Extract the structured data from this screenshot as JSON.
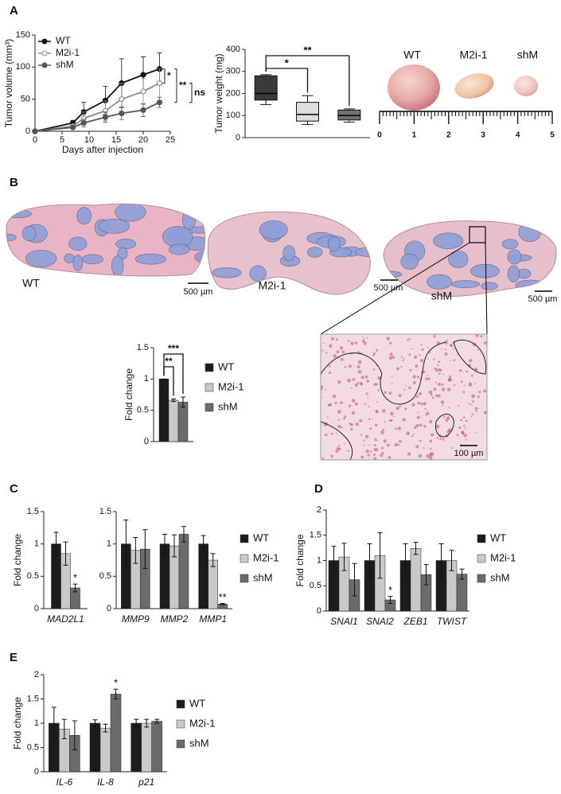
{
  "figure": {
    "panel_labels": [
      "A",
      "B",
      "C",
      "D",
      "E"
    ],
    "tumor_photo": {
      "labels": [
        "WT",
        "M2i-1",
        "shM"
      ],
      "ruler_ticks": [
        0,
        1,
        2,
        3,
        4,
        5
      ]
    },
    "histology": {
      "labels": [
        "WT",
        "M2i-1",
        "shM"
      ],
      "scale_bars": [
        "500 µm",
        "500 µm",
        "500 µm"
      ],
      "inset_scale_bar": "100 µm"
    }
  },
  "chart_data": [
    {
      "type": "line",
      "xlabel": "Days after injection",
      "ylabel": "Tumor volume (mm³)",
      "x": [
        0,
        7,
        9,
        13,
        16,
        20,
        23
      ],
      "xlim": [
        0,
        25
      ],
      "xticks": [
        0,
        5,
        10,
        15,
        20,
        25
      ],
      "ylim": [
        0,
        150
      ],
      "yticks": [
        0,
        50,
        100,
        150
      ],
      "series": [
        {
          "name": "WT",
          "color": "#111111",
          "marker": "filled",
          "values": [
            0,
            13,
            30,
            48,
            75,
            88,
            97
          ],
          "errors": [
            0,
            4,
            15,
            22,
            38,
            28,
            25
          ]
        },
        {
          "name": "M2i-1",
          "color": "#8a8a8a",
          "marker": "open",
          "values": [
            0,
            8,
            20,
            32,
            50,
            62,
            75
          ],
          "errors": [
            0,
            3,
            10,
            15,
            25,
            20,
            22
          ]
        },
        {
          "name": "shM",
          "color": "#555555",
          "marker": "filled",
          "values": [
            0,
            6,
            13,
            22,
            28,
            33,
            45
          ],
          "errors": [
            0,
            2,
            6,
            8,
            10,
            10,
            8
          ]
        }
      ],
      "annotations": [
        "*",
        "**",
        "ns"
      ]
    },
    {
      "type": "box",
      "ylabel": "Tumor weight (mg)",
      "categories": [
        null,
        null,
        null
      ],
      "ylim": [
        0,
        400
      ],
      "yticks": [
        0,
        100,
        200,
        300,
        400
      ],
      "boxes": [
        {
          "color": "#3a3a3a",
          "min": 150,
          "q1": 170,
          "median": 200,
          "q3": 280,
          "max": 285
        },
        {
          "color": "#dedede",
          "min": 60,
          "q1": 75,
          "median": 105,
          "q3": 160,
          "max": 190
        },
        {
          "color": "#707070",
          "min": 70,
          "q1": 80,
          "median": 100,
          "q3": 125,
          "max": 130
        }
      ],
      "annotations": [
        "*",
        "**"
      ]
    },
    {
      "type": "bar",
      "ylabel": "Fold change",
      "categories": [
        null
      ],
      "ylim": [
        0,
        1.5
      ],
      "yticks": [
        0,
        0.5,
        1,
        1.5
      ],
      "legend": true,
      "series": [
        {
          "name": "WT",
          "color": "#1c1c1c",
          "values": [
            1
          ],
          "errors": [
            0
          ]
        },
        {
          "name": "M2i-1",
          "color": "#c9c9c9",
          "values": [
            0.66
          ],
          "errors": [
            0.02
          ]
        },
        {
          "name": "shM",
          "color": "#6b6b6b",
          "values": [
            0.63
          ],
          "errors": [
            0.08
          ]
        }
      ],
      "annotations": [
        "**",
        "***"
      ]
    },
    {
      "type": "bar",
      "ylabel": "Fold change",
      "categories": [
        "MAD2L1"
      ],
      "ylim": [
        0,
        1.5
      ],
      "yticks": [
        0,
        0.5,
        1,
        1.5
      ],
      "legend": false,
      "series": [
        {
          "color": "#1c1c1c",
          "values": [
            1
          ],
          "errors": [
            0.18
          ]
        },
        {
          "color": "#c9c9c9",
          "values": [
            0.85
          ],
          "errors": [
            0.18
          ]
        },
        {
          "color": "#6b6b6b",
          "values": [
            0.32
          ],
          "errors": [
            0.06
          ]
        }
      ],
      "annotations": [
        "*"
      ]
    },
    {
      "type": "bar",
      "categories": [
        "MMP9",
        "MMP2",
        "MMP1"
      ],
      "ylim": [
        0,
        1.5
      ],
      "yticks": [
        0,
        0.5,
        1,
        1.5
      ],
      "legend": true,
      "series": [
        {
          "name": "WT",
          "color": "#1c1c1c",
          "values": [
            1,
            1,
            1
          ],
          "errors": [
            0.37,
            0.15,
            0.13
          ]
        },
        {
          "name": "M2i-1",
          "color": "#c9c9c9",
          "values": [
            0.9,
            0.97,
            0.75
          ],
          "errors": [
            0.2,
            0.17,
            0.1
          ]
        },
        {
          "name": "shM",
          "color": "#6b6b6b",
          "values": [
            0.92,
            1.15,
            0.07
          ],
          "errors": [
            0.3,
            0.12,
            0.01
          ]
        }
      ],
      "annotations": [
        "**"
      ]
    },
    {
      "type": "bar",
      "ylabel": "Fold change",
      "categories": [
        "SNAI1",
        "SNAI2",
        "ZEB1",
        "TWIST"
      ],
      "ylim": [
        0,
        2
      ],
      "yticks": [
        0,
        0.5,
        1,
        1.5,
        2
      ],
      "legend": true,
      "series": [
        {
          "name": "WT",
          "color": "#1c1c1c",
          "values": [
            1,
            1,
            1,
            1
          ],
          "errors": [
            0.28,
            0.33,
            0.33,
            0.33
          ]
        },
        {
          "name": "M2i-1",
          "color": "#c9c9c9",
          "values": [
            1.07,
            1.1,
            1.24,
            1
          ],
          "errors": [
            0.27,
            0.45,
            0.12,
            0.2
          ]
        },
        {
          "name": "shM",
          "color": "#6b6b6b",
          "values": [
            0.62,
            0.22,
            0.72,
            0.73
          ],
          "errors": [
            0.32,
            0.07,
            0.2,
            0.1
          ]
        }
      ],
      "annotations": [
        "*"
      ]
    },
    {
      "type": "bar",
      "ylabel": "Fold change",
      "categories": [
        "IL-6",
        "IL-8",
        "p21"
      ],
      "ylim": [
        0,
        2
      ],
      "yticks": [
        0,
        0.5,
        1,
        1.5,
        2
      ],
      "legend": true,
      "series": [
        {
          "name": "WT",
          "color": "#1c1c1c",
          "values": [
            1,
            1,
            1
          ],
          "errors": [
            0.33,
            0.07,
            0.08
          ]
        },
        {
          "name": "M2i-1",
          "color": "#c9c9c9",
          "values": [
            0.88,
            0.9,
            1
          ],
          "errors": [
            0.2,
            0.08,
            0.08
          ]
        },
        {
          "name": "shM",
          "color": "#6b6b6b",
          "values": [
            0.75,
            1.6,
            1.04
          ],
          "errors": [
            0.3,
            0.1,
            0.04
          ]
        }
      ],
      "annotations": [
        "*"
      ]
    }
  ]
}
